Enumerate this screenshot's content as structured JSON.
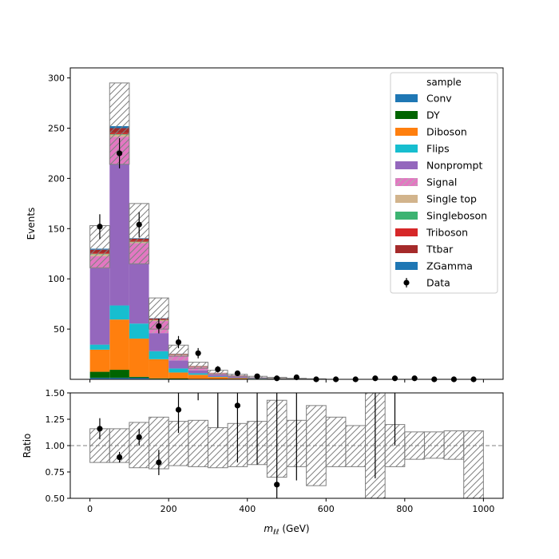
{
  "chart_data": [
    {
      "type": "bar",
      "stacked": true,
      "ylabel": "Events",
      "xlim": [
        -50,
        1050
      ],
      "ylim": [
        0,
        310
      ],
      "yticks": [
        50,
        100,
        150,
        200,
        250,
        300
      ],
      "bin_edges": [
        0,
        50,
        100,
        150,
        200,
        250,
        300,
        350,
        400,
        450,
        500,
        550,
        600,
        650,
        700,
        750,
        800,
        850,
        900,
        950,
        1000
      ],
      "legend": {
        "title": "sample",
        "placement": "top-right"
      },
      "series": [
        {
          "name": "Conv",
          "color": "#1f77b4",
          "hatched": false,
          "values": [
            1.5,
            1.5,
            1.5,
            0.5,
            0.3,
            0.2,
            0.1,
            0.1,
            0.05,
            0.05,
            0,
            0,
            0,
            0,
            0,
            0,
            0,
            0,
            0,
            0
          ]
        },
        {
          "name": "DY",
          "color": "#006400",
          "hatched": false,
          "values": [
            6,
            8,
            1,
            0.5,
            0.5,
            0.3,
            0.2,
            0.1,
            0.05,
            0.05,
            0,
            0,
            0,
            0,
            0,
            0,
            0,
            0,
            0,
            0
          ]
        },
        {
          "name": "Diboson",
          "color": "#ff7f0e",
          "hatched": false,
          "values": [
            22,
            50,
            38,
            19,
            6,
            4,
            2,
            1,
            0.5,
            0.3,
            0.2,
            0.1,
            0.1,
            0.05,
            0.05,
            0.05,
            0.05,
            0.05,
            0.05,
            0.05
          ]
        },
        {
          "name": "Flips",
          "color": "#17becf",
          "hatched": false,
          "values": [
            5,
            14,
            15,
            8,
            4,
            1.5,
            0.5,
            0.3,
            0.2,
            0.1,
            0.05,
            0.05,
            0,
            0,
            0,
            0,
            0,
            0,
            0,
            0
          ]
        },
        {
          "name": "Nonprompt",
          "color": "#9467bd",
          "hatched": false,
          "values": [
            76,
            141,
            60,
            18,
            8,
            3,
            1.5,
            1,
            0.5,
            0.3,
            0.2,
            0.1,
            0.05,
            0.05,
            0.05,
            0.05,
            0.05,
            0.05,
            0.05,
            0.05
          ]
        },
        {
          "name": "Signal",
          "color": "#e377c2",
          "hatched": true,
          "values": [
            12,
            27,
            20,
            12,
            5,
            3,
            1.5,
            1,
            0.5,
            0.3,
            0.2,
            0.1,
            0.1,
            0.05,
            0.05,
            0.05,
            0.05,
            0.05,
            0.05,
            0.05
          ]
        },
        {
          "name": "Single top",
          "color": "#d2b48c",
          "hatched": false,
          "values": [
            2,
            2,
            1,
            0.8,
            0.5,
            0.3,
            0.2,
            0.1,
            0.05,
            0.05,
            0,
            0,
            0,
            0,
            0,
            0,
            0,
            0,
            0,
            0
          ]
        },
        {
          "name": "Singleboson",
          "color": "#3cb371",
          "hatched": false,
          "values": [
            0.5,
            0.5,
            0.5,
            0.3,
            0.2,
            0.1,
            0.05,
            0.05,
            0,
            0,
            0,
            0,
            0,
            0,
            0,
            0,
            0,
            0,
            0,
            0
          ]
        },
        {
          "name": "Triboson",
          "color": "#d62728",
          "hatched": false,
          "values": [
            1,
            1,
            1,
            0.5,
            0.3,
            0.2,
            0.1,
            0.1,
            0.05,
            0.05,
            0,
            0,
            0,
            0,
            0,
            0,
            0,
            0,
            0,
            0
          ]
        },
        {
          "name": "Ttbar",
          "color": "#a52a2a",
          "hatched": false,
          "values": [
            3,
            5,
            2,
            1,
            0.5,
            0.5,
            0.3,
            0.2,
            0.1,
            0.05,
            0.05,
            0,
            0,
            0,
            0,
            0,
            0,
            0,
            0,
            0
          ]
        },
        {
          "name": "ZGamma",
          "color": "#1f77b4",
          "hatched": false,
          "values": [
            1,
            2,
            0.5,
            0.3,
            0.2,
            0.1,
            0.05,
            0.05,
            0,
            0,
            0,
            0,
            0,
            0,
            0,
            0,
            0,
            0,
            0,
            0
          ]
        }
      ],
      "uncertainty_band": {
        "down": [
          111,
          214,
          115,
          50,
          23,
          11,
          5,
          3,
          1.5,
          0.8,
          0.3,
          0.2,
          0.1,
          0.05,
          0.05,
          0.05,
          0.05,
          0.05,
          0.05,
          0.05
        ],
        "up": [
          153,
          295,
          175,
          81,
          34,
          17,
          9,
          5,
          3,
          2,
          1,
          0.5,
          0.3,
          0.2,
          0.1,
          0.1,
          0.05,
          0.05,
          0.05,
          0.05
        ]
      },
      "data": {
        "name": "Data",
        "x": [
          25,
          75,
          125,
          175,
          225,
          275,
          325,
          375,
          425,
          475,
          525,
          575,
          625,
          675,
          725,
          775,
          825,
          875,
          925,
          975
        ],
        "y": [
          152,
          225,
          154,
          53,
          37,
          26,
          10,
          6,
          3,
          1,
          2,
          0,
          0,
          0,
          1,
          1,
          1,
          0,
          0,
          0
        ],
        "err": [
          12.3,
          15,
          12.4,
          7.3,
          6.1,
          5.1,
          3.2,
          2.4,
          1.7,
          1,
          1.4,
          0,
          0,
          0,
          1,
          1,
          1,
          0,
          0,
          0
        ]
      }
    },
    {
      "type": "scatter",
      "ylabel": "Ratio",
      "xlabel": "$m_{\\ell\\ell}$ (GeV)",
      "xlabel_main": "m",
      "xlabel_sub": "ℓℓ",
      "xlabel_unit": " (GeV)",
      "xlim": [
        -50,
        1050
      ],
      "ylim": [
        0.5,
        1.5
      ],
      "xticks": [
        0,
        200,
        400,
        600,
        800,
        1000
      ],
      "yticks": [
        0.5,
        0.75,
        1.0,
        1.25,
        1.5
      ],
      "ytick_labels": [
        "0.50",
        "0.75",
        "1.00",
        "1.25",
        "1.50"
      ],
      "reference_line": 1.0,
      "band": {
        "down": [
          0.84,
          0.84,
          0.79,
          0.78,
          0.81,
          0.8,
          0.79,
          0.8,
          0.82,
          0.7,
          0.8,
          0.62,
          0.8,
          0.8,
          0.5,
          0.8,
          0.87,
          0.88,
          0.87,
          0.45
        ],
        "up": [
          1.16,
          1.16,
          1.22,
          1.27,
          1.23,
          1.24,
          1.17,
          1.21,
          1.23,
          1.43,
          1.24,
          1.38,
          1.27,
          1.19,
          1.5,
          1.2,
          1.13,
          1.13,
          1.14,
          1.14
        ]
      },
      "points": {
        "x": [
          25,
          75,
          125,
          175,
          225,
          275,
          325,
          375,
          425,
          475,
          525,
          575,
          625,
          675,
          725,
          775,
          825,
          875,
          925,
          975
        ],
        "y": [
          1.16,
          0.89,
          1.08,
          0.84,
          1.34,
          null,
          null,
          1.38,
          null,
          0.63,
          null,
          null,
          null,
          null,
          null,
          null,
          null,
          null,
          null,
          null
        ],
        "lo": [
          1.06,
          0.84,
          1.0,
          0.72,
          1.12,
          1.43,
          1.17,
          0.84,
          0.82,
          0.5,
          0.67,
          null,
          null,
          null,
          0.69,
          1.0,
          null,
          null,
          null,
          null
        ],
        "hi": [
          1.26,
          0.94,
          1.16,
          0.96,
          1.56,
          1.5,
          1.5,
          1.5,
          1.5,
          1.5,
          1.5,
          null,
          null,
          null,
          1.5,
          1.5,
          null,
          null,
          null,
          null
        ]
      }
    }
  ]
}
